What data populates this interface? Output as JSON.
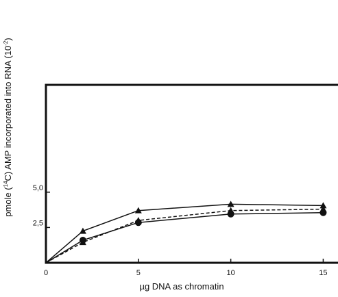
{
  "chart_data": {
    "type": "line",
    "xlabel": "µg DNA as chromatin",
    "ylabel": {
      "pre": "pmole (",
      "sup1": "14",
      "mid": "C) AMP incorporated into RNA (10",
      "sup2": "-2",
      "post": ")"
    },
    "xlim": [
      0,
      15.8
    ],
    "ylim": [
      0,
      12.6
    ],
    "xticks": [
      0,
      5,
      10,
      15
    ],
    "xtick_labels": [
      "0",
      "5",
      "10",
      "15"
    ],
    "yticks": [
      2.5,
      5.0
    ],
    "ytick_labels": [
      "2,5",
      "5,0"
    ],
    "grid": false,
    "series": [
      {
        "marker": "triangle",
        "style": "solid",
        "x": [
          0,
          2,
          5,
          10,
          15
        ],
        "y": [
          0,
          2.25,
          3.7,
          4.15,
          4.05
        ]
      },
      {
        "marker": "triangle",
        "style": "dashed",
        "x": [
          0,
          2,
          5,
          10,
          15
        ],
        "y": [
          0,
          1.45,
          3.0,
          3.7,
          3.8
        ]
      },
      {
        "marker": "circle",
        "style": "solid",
        "x": [
          0,
          2,
          5,
          10,
          15
        ],
        "y": [
          0,
          1.6,
          2.85,
          3.45,
          3.55
        ]
      }
    ],
    "colors": {
      "line": "#111111",
      "background": "#ffffff"
    }
  }
}
